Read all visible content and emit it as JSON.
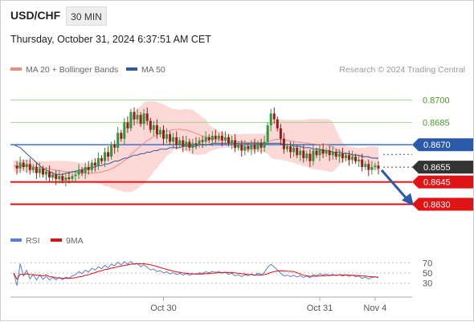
{
  "header": {
    "pair": "USD/CHF",
    "timeframe": "30 MIN",
    "timestamp": "Thursday, October 31, 2024 6:37:51 AM CET",
    "research": "Research © 2024 Trading Central"
  },
  "legend_main": [
    {
      "label": "MA 20 + Bollinger Bands",
      "color": "#f08a80"
    },
    {
      "label": "MA 50",
      "color": "#2f5a9e"
    }
  ],
  "legend_rsi": [
    {
      "label": "RSI",
      "color": "#5b7fd6"
    },
    {
      "label": "9MA",
      "color": "#e01010"
    }
  ],
  "chart_data": [
    {
      "type": "candlestick",
      "ylim": [
        0.862,
        0.871
      ],
      "levels": [
        {
          "value": 0.87,
          "label": "0.8700",
          "style": "green-thin"
        },
        {
          "value": 0.8685,
          "label": "0.8685",
          "style": "green-thin"
        },
        {
          "value": 0.867,
          "label": "0.8670",
          "style": "blue-box"
        },
        {
          "value": 0.8655,
          "label": "0.8655",
          "style": "dark-box-current"
        },
        {
          "value": 0.8645,
          "label": "0.8645",
          "style": "red-box"
        },
        {
          "value": 0.863,
          "label": "0.8630",
          "style": "red-box"
        }
      ],
      "x_ticks": [
        {
          "label": "Oct 30",
          "index": 46
        },
        {
          "label": "Oct 31",
          "index": 94
        },
        {
          "label": "Nov 4",
          "index": 111
        }
      ],
      "close": [
        0.8656,
        0.8654,
        0.8658,
        0.8655,
        0.8657,
        0.8653,
        0.8655,
        0.8651,
        0.8654,
        0.865,
        0.8652,
        0.8648,
        0.865,
        0.8647,
        0.8649,
        0.8646,
        0.8648,
        0.8647,
        0.8649,
        0.865,
        0.8653,
        0.8651,
        0.8655,
        0.8653,
        0.8658,
        0.8656,
        0.8661,
        0.8659,
        0.8665,
        0.8662,
        0.867,
        0.8668,
        0.8678,
        0.8674,
        0.8685,
        0.8681,
        0.8692,
        0.8687,
        0.869,
        0.8684,
        0.8691,
        0.8686,
        0.868,
        0.8683,
        0.8677,
        0.868,
        0.8674,
        0.8677,
        0.8672,
        0.8675,
        0.867,
        0.8673,
        0.8669,
        0.8672,
        0.8668,
        0.8671,
        0.867,
        0.8673,
        0.8672,
        0.8675,
        0.8673,
        0.8676,
        0.8674,
        0.8676,
        0.8673,
        0.8675,
        0.8671,
        0.8673,
        0.8668,
        0.867,
        0.8666,
        0.8669,
        0.8667,
        0.867,
        0.8667,
        0.8671,
        0.8668,
        0.8672,
        0.8683,
        0.8691,
        0.8687,
        0.8681,
        0.8674,
        0.8667,
        0.8669,
        0.8665,
        0.8668,
        0.8663,
        0.8666,
        0.8661,
        0.8664,
        0.8659,
        0.8666,
        0.8663,
        0.8667,
        0.8664,
        0.8666,
        0.8663,
        0.8665,
        0.8662,
        0.8664,
        0.8661,
        0.8663,
        0.866,
        0.8662,
        0.8659,
        0.866,
        0.8655,
        0.8657,
        0.8653,
        0.8655,
        0.8656,
        0.8654
      ],
      "ma50": [
        0.867,
        0.8669,
        0.8668,
        0.8666,
        0.8664,
        0.8662,
        0.866,
        0.8658,
        0.8656,
        0.8654,
        0.8653,
        0.8652,
        0.8651,
        0.865,
        0.865,
        0.865,
        0.8651,
        0.8651,
        0.8652,
        0.8652,
        0.8653,
        0.8653,
        0.8654,
        0.8654,
        0.8655,
        0.8655,
        0.8656,
        0.8656,
        0.8657,
        0.8657,
        0.8658,
        0.8659,
        0.8659,
        0.866,
        0.8661,
        0.8661,
        0.8662,
        0.8663,
        0.8663,
        0.8664,
        0.8664,
        0.8665,
        0.8665,
        0.8666,
        0.8666,
        0.8667,
        0.8667,
        0.8667,
        0.8668,
        0.8668,
        0.8668,
        0.8668,
        0.8669,
        0.8669,
        0.8669,
        0.8669,
        0.8669,
        0.867,
        0.867,
        0.867,
        0.867,
        0.8671,
        0.8671,
        0.8671,
        0.8671,
        0.8671,
        0.8671,
        0.8671,
        0.8671,
        0.8671,
        0.8671,
        0.8671,
        0.8671,
        0.8671,
        0.8671,
        0.8671,
        0.8671,
        0.8671,
        0.8671,
        0.8671,
        0.8671,
        0.8671,
        0.8671,
        0.867,
        0.867,
        0.867,
        0.8669,
        0.8669,
        0.8669,
        0.8668,
        0.8668,
        0.8668,
        0.8667,
        0.8667,
        0.8667,
        0.8666,
        0.8666,
        0.8666,
        0.8665,
        0.8665,
        0.8665,
        0.8664,
        0.8664,
        0.8664,
        0.8663,
        0.8663,
        0.8663,
        0.8662,
        0.8662,
        0.8662,
        0.8661,
        0.8661,
        0.8661
      ],
      "rsi": {
        "ylim": [
          20,
          80
        ],
        "ticks": [
          70,
          50,
          30
        ]
      }
    }
  ]
}
